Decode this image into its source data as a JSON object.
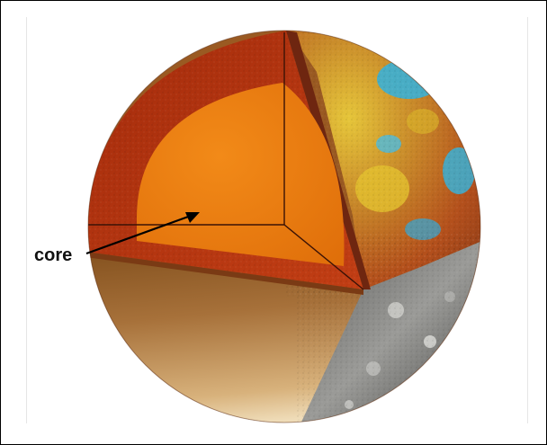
{
  "diagram": {
    "labels": {
      "core": "core"
    },
    "colors": {
      "core": "#ec7a0e",
      "mantle": "#b8330e",
      "crust_cut": "#7a2a12",
      "surface_shadow": "#8c5a23",
      "surface_light": "#d9b37a",
      "cratered_surface": "#8a8a88",
      "highland_blue": "#3ab0d6",
      "highland_yellow": "#e3c230",
      "frame": "#000000"
    },
    "icons": [
      "core-arrow-icon"
    ]
  }
}
